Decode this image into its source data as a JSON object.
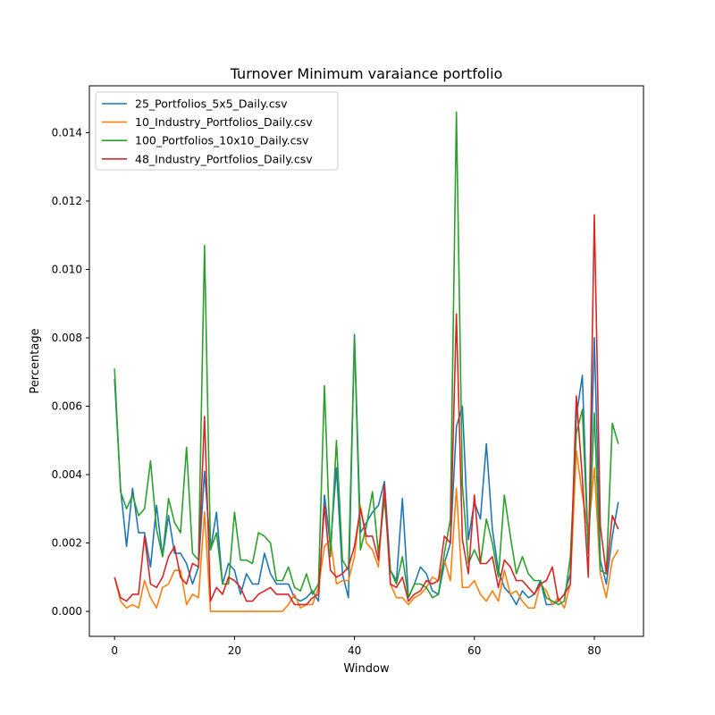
{
  "chart_data": {
    "type": "line",
    "title": "Turnover Minimum varaiance portfolio",
    "xlabel": "Window",
    "ylabel": "Percentage",
    "xlim": [
      -4.2,
      88.2
    ],
    "ylim": [
      -0.00073,
      0.01537
    ],
    "xticks": [
      0,
      20,
      40,
      60,
      80
    ],
    "yticks": [
      0.0,
      0.002,
      0.004,
      0.006,
      0.008,
      0.01,
      0.012,
      0.014
    ],
    "ytick_labels": [
      "0.000",
      "0.002",
      "0.004",
      "0.006",
      "0.008",
      "0.010",
      "0.012",
      "0.014"
    ],
    "grid": false,
    "legend_placement": "upper left",
    "x": [
      0,
      1,
      2,
      3,
      4,
      5,
      6,
      7,
      8,
      9,
      10,
      11,
      12,
      13,
      14,
      15,
      16,
      17,
      18,
      19,
      20,
      21,
      22,
      23,
      24,
      25,
      26,
      27,
      28,
      29,
      30,
      31,
      32,
      33,
      34,
      35,
      36,
      37,
      38,
      39,
      40,
      41,
      42,
      43,
      44,
      45,
      46,
      47,
      48,
      49,
      50,
      51,
      52,
      53,
      54,
      55,
      56,
      57,
      58,
      59,
      60,
      61,
      62,
      63,
      64,
      65,
      66,
      67,
      68,
      69,
      70,
      71,
      72,
      73,
      74,
      75,
      76,
      77,
      78,
      79,
      80,
      81,
      82,
      83,
      84
    ],
    "series": [
      {
        "name": "25_Portfolios_5x5_Daily.csv",
        "color": "#1f77b4",
        "values": [
          0.0068,
          0.0036,
          0.0019,
          0.0036,
          0.0023,
          0.0023,
          0.0013,
          0.0031,
          0.0016,
          0.0028,
          0.0017,
          0.0017,
          0.0014,
          0.0008,
          0.0013,
          0.0041,
          0.0018,
          0.0029,
          0.0008,
          0.0014,
          0.0012,
          0.0005,
          0.0011,
          0.0008,
          0.0008,
          0.0017,
          0.0011,
          0.0008,
          0.0008,
          0.0008,
          0.0004,
          0.0003,
          0.0004,
          0.0006,
          0.0003,
          0.0034,
          0.0019,
          0.0042,
          0.0011,
          0.0004,
          0.0081,
          0.0023,
          0.0026,
          0.0029,
          0.0031,
          0.0038,
          0.0012,
          0.0009,
          0.0033,
          0.0004,
          0.0008,
          0.0013,
          0.0011,
          0.0006,
          0.0005,
          0.0014,
          0.002,
          0.0054,
          0.006,
          0.0021,
          0.0032,
          0.0027,
          0.0049,
          0.0024,
          0.0012,
          0.0007,
          0.0005,
          0.0002,
          0.0006,
          0.0004,
          0.0005,
          0.0009,
          0.0002,
          0.0002,
          0.0003,
          0.0005,
          0.0011,
          0.0057,
          0.0069,
          0.0017,
          0.008,
          0.0015,
          0.0008,
          0.0022,
          0.0032
        ]
      },
      {
        "name": "10_Industry_Portfolios_Daily.csv",
        "color": "#ff7f0e",
        "values": [
          0.001,
          0.0003,
          0.0001,
          0.0002,
          0.0001,
          0.0009,
          0.0004,
          0.0001,
          0.0007,
          0.0008,
          0.0012,
          0.0012,
          0.0002,
          0.0005,
          0.0004,
          0.0029,
          0.0,
          0.0,
          0.0,
          0.0,
          0.0,
          0.0,
          0.0,
          0.0,
          0.0,
          0.0,
          0.0,
          0.0,
          0.0,
          0.0002,
          0.0005,
          0.0001,
          0.0002,
          0.0002,
          0.0007,
          0.0019,
          0.0021,
          0.0008,
          0.0009,
          0.0009,
          0.0016,
          0.0031,
          0.002,
          0.0018,
          0.0013,
          0.0036,
          0.0008,
          0.0004,
          0.0004,
          0.0002,
          0.0004,
          0.0005,
          0.0007,
          0.001,
          0.0009,
          0.0015,
          0.0009,
          0.0036,
          0.0007,
          0.0007,
          0.0009,
          0.0005,
          0.0003,
          0.0006,
          0.0003,
          0.0012,
          0.0005,
          0.0006,
          0.0003,
          0.0001,
          0.0001,
          0.0008,
          0.0006,
          0.0002,
          0.0004,
          0.0001,
          0.0008,
          0.0047,
          0.0034,
          0.0023,
          0.0042,
          0.0011,
          0.0004,
          0.0015,
          0.0018
        ]
      },
      {
        "name": "100_Portfolios_10x10_Daily.csv",
        "color": "#2ca02c",
        "values": [
          0.0071,
          0.0035,
          0.003,
          0.0034,
          0.0028,
          0.003,
          0.0044,
          0.0024,
          0.0016,
          0.0033,
          0.0026,
          0.0023,
          0.0048,
          0.0017,
          0.0015,
          0.0107,
          0.0018,
          0.0023,
          0.0008,
          0.0008,
          0.0029,
          0.0015,
          0.0015,
          0.0014,
          0.0023,
          0.0022,
          0.002,
          0.0009,
          0.0009,
          0.0013,
          0.0007,
          0.0006,
          0.0011,
          0.0005,
          0.0008,
          0.0066,
          0.0016,
          0.005,
          0.0015,
          0.0012,
          0.008,
          0.0018,
          0.0025,
          0.0035,
          0.0017,
          0.0033,
          0.0012,
          0.0008,
          0.0016,
          0.0004,
          0.0008,
          0.0008,
          0.0007,
          0.0004,
          0.0005,
          0.0017,
          0.0027,
          0.0146,
          0.0037,
          0.0014,
          0.0018,
          0.0014,
          0.0027,
          0.002,
          0.001,
          0.0034,
          0.0022,
          0.0011,
          0.0016,
          0.0011,
          0.0009,
          0.0009,
          0.0004,
          0.0003,
          0.0002,
          0.0003,
          0.0016,
          0.0052,
          0.0059,
          0.0017,
          0.0058,
          0.0012,
          0.0011,
          0.0055,
          0.0049
        ]
      },
      {
        "name": "48_Industry_Portfolios_Daily.csv",
        "color": "#d62728",
        "values": [
          0.001,
          0.0004,
          0.0003,
          0.0005,
          0.0005,
          0.0022,
          0.0008,
          0.0007,
          0.001,
          0.0016,
          0.0019,
          0.001,
          0.0008,
          0.0014,
          0.0013,
          0.0057,
          0.0003,
          0.0007,
          0.0005,
          0.001,
          0.0009,
          0.0007,
          0.0003,
          0.0003,
          0.0005,
          0.0006,
          0.0007,
          0.0005,
          0.0005,
          0.0005,
          0.0002,
          0.0002,
          0.0002,
          0.0004,
          0.0005,
          0.0031,
          0.0012,
          0.001,
          0.0011,
          0.0013,
          0.0019,
          0.003,
          0.0022,
          0.0022,
          0.0015,
          0.0037,
          0.0008,
          0.0007,
          0.001,
          0.0003,
          0.0005,
          0.0006,
          0.0009,
          0.0008,
          0.0009,
          0.0022,
          0.002,
          0.0087,
          0.0021,
          0.0011,
          0.0034,
          0.0014,
          0.0014,
          0.0016,
          0.0007,
          0.0015,
          0.0013,
          0.0009,
          0.0009,
          0.0007,
          0.0005,
          0.0008,
          0.0009,
          0.0013,
          0.0003,
          0.0005,
          0.0008,
          0.0063,
          0.0039,
          0.001,
          0.0116,
          0.0025,
          0.0011,
          0.0028,
          0.0024
        ]
      }
    ]
  }
}
